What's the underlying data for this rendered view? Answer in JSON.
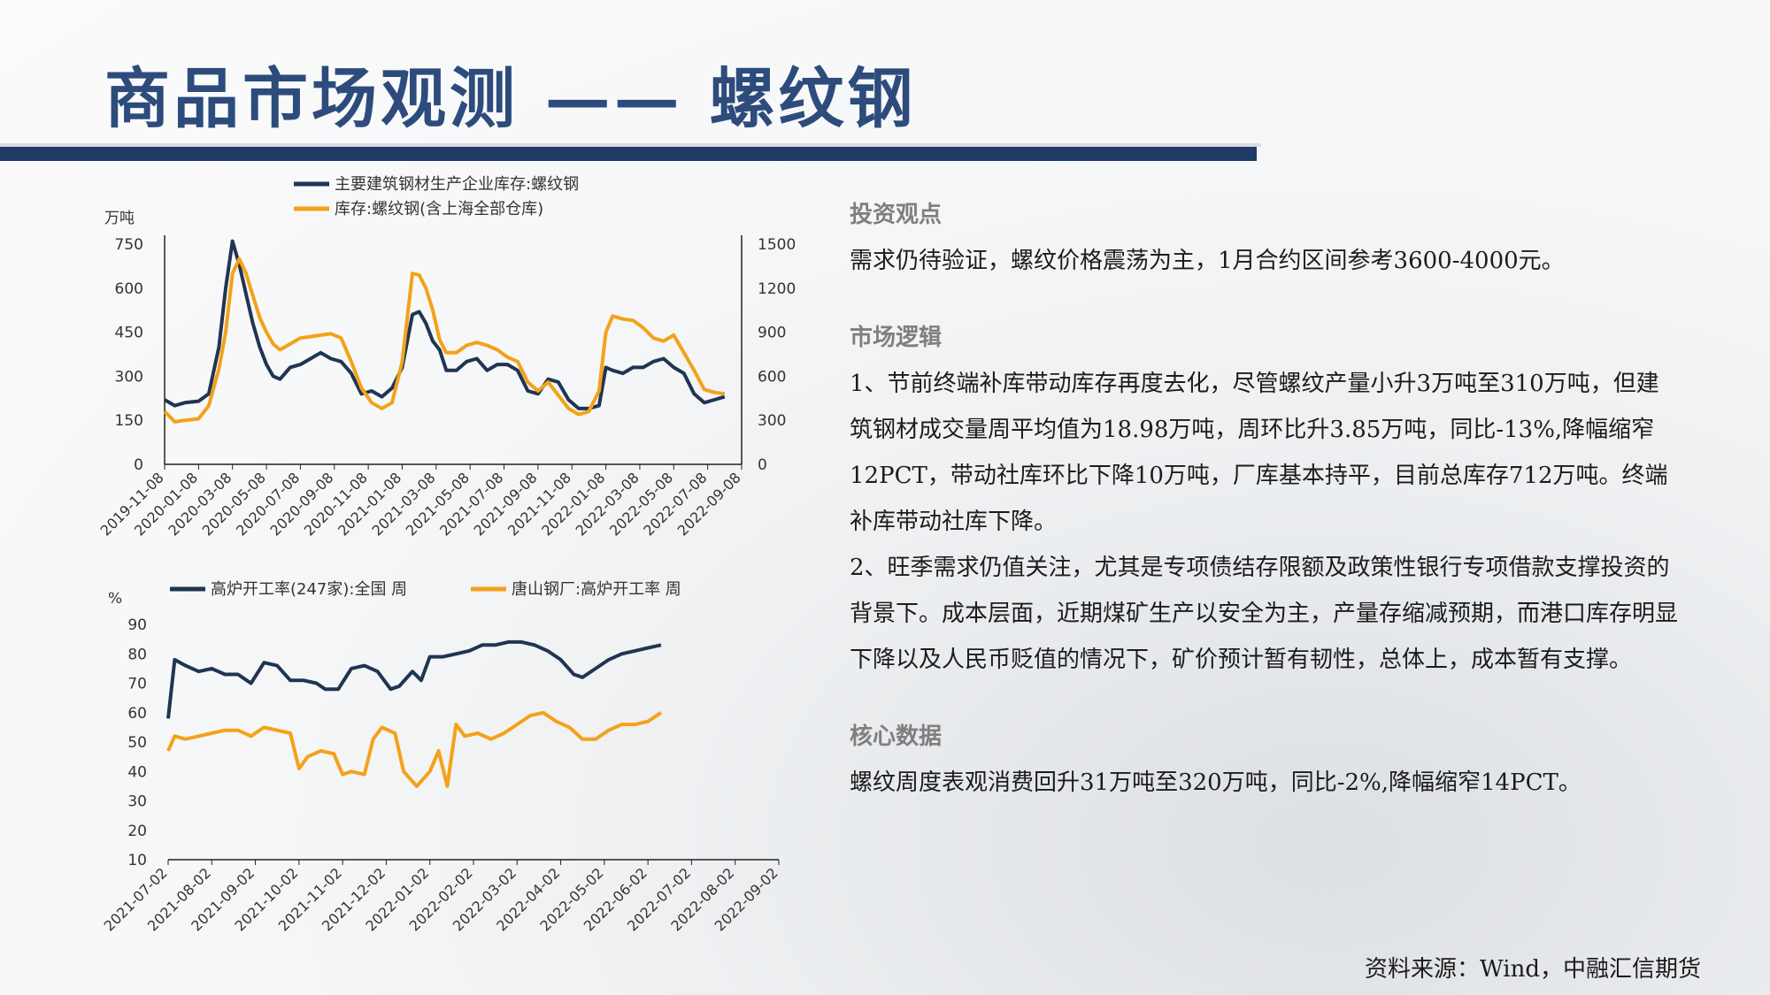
{
  "title": "商品市场观测 —— 螺纹钢",
  "source": "资料来源：Wind，中融汇信期货",
  "sections": [
    {
      "head": "投资观点",
      "body": [
        "需求仍待验证，螺纹价格震荡为主，1月合约区间参考3600-4000元。"
      ]
    },
    {
      "head": "市场逻辑",
      "body": [
        "1、节前终端补库带动库存再度去化，尽管螺纹产量小升3万吨至310万吨，但建筑钢材成交量周平均值为18.98万吨，周环比升3.85万吨，同比-13%,降幅缩窄12PCT，带动社库环比下降10万吨，厂库基本持平，目前总库存712万吨。终端补库带动社库下降。",
        "2、旺季需求仍值关注，尤其是专项债结存限额及政策性银行专项借款支撑投资的背景下。成本层面，近期煤矿生产以安全为主，产量存缩减预期，而港口库存明显下降以及人民币贬值的情况下，矿价预计暂有韧性，总体上，成本暂有支撑。"
      ]
    },
    {
      "head": "核心数据",
      "body": [
        "螺纹周度表观消费回升31万吨至320万吨，同比-2%,降幅缩窄14PCT。"
      ]
    }
  ],
  "chart_data": [
    {
      "type": "line",
      "ylabel": "万吨",
      "ylim": [
        0,
        750
      ],
      "yticks": [
        0,
        150,
        300,
        450,
        600,
        750
      ],
      "y2lim": [
        0,
        1500
      ],
      "y2ticks": [
        0,
        300,
        600,
        900,
        1200,
        1500
      ],
      "x_ticks": [
        "2019-11-08",
        "2020-01-08",
        "2020-03-08",
        "2020-05-08",
        "2020-07-08",
        "2020-09-08",
        "2020-11-08",
        "2021-01-08",
        "2021-03-08",
        "2021-05-08",
        "2021-07-08",
        "2021-09-08",
        "2021-11-08",
        "2022-01-08",
        "2022-03-08",
        "2022-05-08",
        "2022-07-08",
        "2022-09-08"
      ],
      "legend": "top",
      "series": [
        {
          "name": "主要建筑钢材生产企业库存:螺纹钢",
          "axis": "left",
          "color": "#1f3552",
          "values": [
            [
              0,
              220
            ],
            [
              0.3,
              200
            ],
            [
              0.6,
              210
            ],
            [
              1.0,
              215
            ],
            [
              1.3,
              240
            ],
            [
              1.6,
              400
            ],
            [
              1.8,
              600
            ],
            [
              2.0,
              760
            ],
            [
              2.2,
              680
            ],
            [
              2.4,
              580
            ],
            [
              2.6,
              480
            ],
            [
              2.8,
              400
            ],
            [
              3.0,
              340
            ],
            [
              3.2,
              300
            ],
            [
              3.4,
              290
            ],
            [
              3.7,
              330
            ],
            [
              4.0,
              340
            ],
            [
              4.3,
              360
            ],
            [
              4.6,
              380
            ],
            [
              4.9,
              360
            ],
            [
              5.2,
              350
            ],
            [
              5.5,
              310
            ],
            [
              5.8,
              240
            ],
            [
              6.1,
              250
            ],
            [
              6.4,
              230
            ],
            [
              6.7,
              260
            ],
            [
              7.0,
              330
            ],
            [
              7.3,
              510
            ],
            [
              7.5,
              520
            ],
            [
              7.7,
              480
            ],
            [
              7.9,
              420
            ],
            [
              8.1,
              390
            ],
            [
              8.3,
              320
            ],
            [
              8.6,
              320
            ],
            [
              8.9,
              350
            ],
            [
              9.2,
              360
            ],
            [
              9.5,
              320
            ],
            [
              9.8,
              340
            ],
            [
              10.1,
              340
            ],
            [
              10.4,
              320
            ],
            [
              10.7,
              250
            ],
            [
              11.0,
              240
            ],
            [
              11.3,
              290
            ],
            [
              11.6,
              280
            ],
            [
              11.9,
              220
            ],
            [
              12.2,
              190
            ],
            [
              12.5,
              190
            ],
            [
              12.8,
              200
            ],
            [
              13.0,
              330
            ],
            [
              13.2,
              320
            ],
            [
              13.5,
              310
            ],
            [
              13.8,
              330
            ],
            [
              14.1,
              330
            ],
            [
              14.4,
              350
            ],
            [
              14.7,
              360
            ],
            [
              15.0,
              330
            ],
            [
              15.3,
              310
            ],
            [
              15.6,
              240
            ],
            [
              15.9,
              210
            ],
            [
              16.2,
              220
            ],
            [
              16.5,
              230
            ]
          ]
        },
        {
          "name": "库存:螺纹钢(含上海全部仓库)",
          "axis": "right",
          "color": "#f3a21a",
          "values": [
            [
              0,
              360
            ],
            [
              0.3,
              290
            ],
            [
              0.6,
              300
            ],
            [
              1.0,
              310
            ],
            [
              1.3,
              400
            ],
            [
              1.6,
              650
            ],
            [
              1.8,
              900
            ],
            [
              2.0,
              1300
            ],
            [
              2.2,
              1400
            ],
            [
              2.4,
              1300
            ],
            [
              2.6,
              1150
            ],
            [
              2.8,
              1000
            ],
            [
              3.0,
              900
            ],
            [
              3.2,
              820
            ],
            [
              3.4,
              780
            ],
            [
              3.7,
              820
            ],
            [
              4.0,
              860
            ],
            [
              4.3,
              870
            ],
            [
              4.6,
              880
            ],
            [
              4.9,
              890
            ],
            [
              5.2,
              860
            ],
            [
              5.5,
              700
            ],
            [
              5.8,
              520
            ],
            [
              6.1,
              420
            ],
            [
              6.4,
              380
            ],
            [
              6.7,
              420
            ],
            [
              7.0,
              700
            ],
            [
              7.3,
              1300
            ],
            [
              7.5,
              1290
            ],
            [
              7.7,
              1200
            ],
            [
              7.9,
              1050
            ],
            [
              8.1,
              850
            ],
            [
              8.3,
              760
            ],
            [
              8.6,
              760
            ],
            [
              8.9,
              810
            ],
            [
              9.2,
              830
            ],
            [
              9.5,
              810
            ],
            [
              9.8,
              780
            ],
            [
              10.1,
              730
            ],
            [
              10.4,
              700
            ],
            [
              10.7,
              560
            ],
            [
              11.0,
              500
            ],
            [
              11.3,
              560
            ],
            [
              11.6,
              470
            ],
            [
              11.9,
              380
            ],
            [
              12.2,
              340
            ],
            [
              12.5,
              360
            ],
            [
              12.8,
              500
            ],
            [
              13.0,
              900
            ],
            [
              13.2,
              1010
            ],
            [
              13.5,
              990
            ],
            [
              13.8,
              980
            ],
            [
              14.1,
              930
            ],
            [
              14.4,
              860
            ],
            [
              14.7,
              840
            ],
            [
              15.0,
              880
            ],
            [
              15.3,
              760
            ],
            [
              15.6,
              640
            ],
            [
              15.9,
              510
            ],
            [
              16.2,
              490
            ],
            [
              16.5,
              480
            ]
          ]
        }
      ]
    },
    {
      "type": "line",
      "ylabel": "%",
      "ylim": [
        10,
        90
      ],
      "yticks": [
        10,
        20,
        30,
        40,
        50,
        60,
        70,
        80,
        90
      ],
      "x_ticks": [
        "2021-07-02",
        "2021-08-02",
        "2021-09-02",
        "2021-10-02",
        "2021-11-02",
        "2021-12-02",
        "2022-01-02",
        "2022-02-02",
        "2022-03-02",
        "2022-04-02",
        "2022-05-02",
        "2022-06-02",
        "2022-07-02",
        "2022-08-02",
        "2022-09-02"
      ],
      "legend": "top",
      "series": [
        {
          "name": "高炉开工率(247家):全国 周",
          "color": "#1f3552",
          "values": [
            [
              0,
              58
            ],
            [
              0.15,
              78
            ],
            [
              0.4,
              76
            ],
            [
              0.7,
              74
            ],
            [
              1.0,
              75
            ],
            [
              1.3,
              73
            ],
            [
              1.6,
              73
            ],
            [
              1.9,
              70
            ],
            [
              2.2,
              77
            ],
            [
              2.5,
              76
            ],
            [
              2.8,
              71
            ],
            [
              3.1,
              71
            ],
            [
              3.4,
              70
            ],
            [
              3.6,
              68
            ],
            [
              3.9,
              68
            ],
            [
              4.2,
              75
            ],
            [
              4.5,
              76
            ],
            [
              4.8,
              74
            ],
            [
              5.1,
              68
            ],
            [
              5.3,
              69
            ],
            [
              5.6,
              74
            ],
            [
              5.8,
              71
            ],
            [
              6.0,
              79
            ],
            [
              6.3,
              79
            ],
            [
              6.6,
              80
            ],
            [
              6.9,
              81
            ],
            [
              7.2,
              83
            ],
            [
              7.5,
              83
            ],
            [
              7.8,
              84
            ],
            [
              8.1,
              84
            ],
            [
              8.4,
              83
            ],
            [
              8.7,
              81
            ],
            [
              9.0,
              78
            ],
            [
              9.3,
              73
            ],
            [
              9.5,
              72
            ],
            [
              9.8,
              75
            ],
            [
              10.1,
              78
            ],
            [
              10.4,
              80
            ],
            [
              10.7,
              81
            ],
            [
              11.0,
              82
            ],
            [
              11.3,
              83
            ]
          ]
        },
        {
          "name": "唐山钢厂:高炉开工率 周",
          "color": "#f3a21a",
          "values": [
            [
              0,
              47
            ],
            [
              0.15,
              52
            ],
            [
              0.4,
              51
            ],
            [
              0.7,
              52
            ],
            [
              1.0,
              53
            ],
            [
              1.3,
              54
            ],
            [
              1.6,
              54
            ],
            [
              1.9,
              52
            ],
            [
              2.2,
              55
            ],
            [
              2.5,
              54
            ],
            [
              2.8,
              53
            ],
            [
              3.0,
              41
            ],
            [
              3.2,
              45
            ],
            [
              3.5,
              47
            ],
            [
              3.8,
              46
            ],
            [
              4.0,
              39
            ],
            [
              4.2,
              40
            ],
            [
              4.5,
              39
            ],
            [
              4.7,
              51
            ],
            [
              4.9,
              55
            ],
            [
              5.2,
              53
            ],
            [
              5.4,
              40
            ],
            [
              5.7,
              35
            ],
            [
              6.0,
              40
            ],
            [
              6.2,
              47
            ],
            [
              6.4,
              35
            ],
            [
              6.6,
              56
            ],
            [
              6.8,
              52
            ],
            [
              7.1,
              53
            ],
            [
              7.4,
              51
            ],
            [
              7.7,
              53
            ],
            [
              8.0,
              56
            ],
            [
              8.3,
              59
            ],
            [
              8.6,
              60
            ],
            [
              8.9,
              57
            ],
            [
              9.2,
              55
            ],
            [
              9.5,
              51
            ],
            [
              9.8,
              51
            ],
            [
              10.1,
              54
            ],
            [
              10.4,
              56
            ],
            [
              10.7,
              56
            ],
            [
              11.0,
              57
            ],
            [
              11.3,
              60
            ]
          ]
        }
      ]
    }
  ]
}
